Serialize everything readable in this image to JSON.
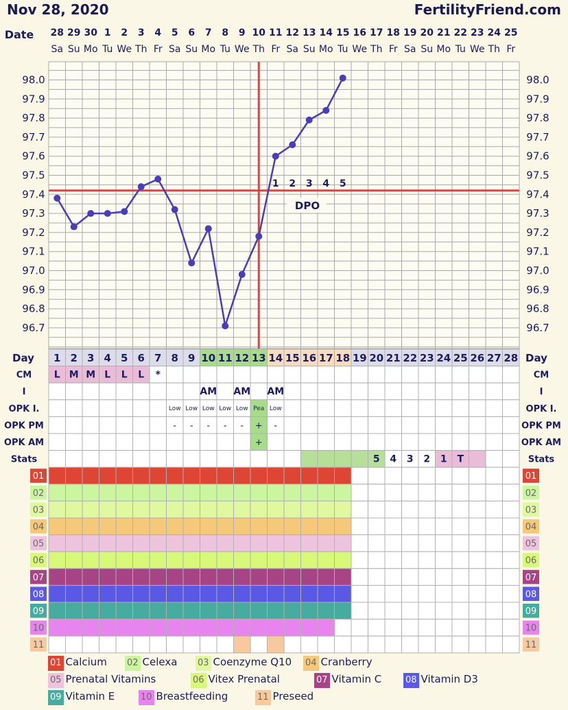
{
  "header": {
    "date": "Nov 28, 2020",
    "site": "FertilityFriend.com"
  },
  "chart_data": {
    "type": "line",
    "xlabel": "Date",
    "dates": [
      "28",
      "29",
      "30",
      "1",
      "2",
      "3",
      "4",
      "5",
      "6",
      "7",
      "8",
      "9",
      "10",
      "11",
      "12",
      "13",
      "14",
      "15",
      "16",
      "17",
      "18",
      "19",
      "20",
      "21",
      "22",
      "23",
      "24",
      "25"
    ],
    "weekdays": [
      "Sa",
      "Su",
      "Mo",
      "Tu",
      "We",
      "Th",
      "Fr",
      "Sa",
      "Su",
      "Mo",
      "Tu",
      "We",
      "Th",
      "Fr",
      "Sa",
      "Su",
      "Mo",
      "Tu",
      "We",
      "Th",
      "Fr",
      "Sa",
      "Su",
      "Mo",
      "Tu",
      "We",
      "Th",
      "Fr"
    ],
    "ylim": [
      96.6,
      98.1
    ],
    "yticks": [
      "98.0",
      "97.9",
      "97.8",
      "97.7",
      "97.6",
      "97.5",
      "97.4",
      "97.3",
      "97.2",
      "97.1",
      "97.0",
      "96.9",
      "96.8",
      "96.7"
    ],
    "temps": [
      97.38,
      97.23,
      97.3,
      97.3,
      97.31,
      97.44,
      97.48,
      97.32,
      97.04,
      97.22,
      96.71,
      96.98,
      97.18,
      97.6,
      97.66,
      97.79,
      97.84,
      98.01
    ],
    "coverline": 97.42,
    "ovulation_day": 13,
    "dpo": {
      "label": "DPO",
      "numbers": [
        "1",
        "2",
        "3",
        "4",
        "5"
      ]
    },
    "day_label": "Day",
    "days": [
      "1",
      "2",
      "3",
      "4",
      "5",
      "6",
      "7",
      "8",
      "9",
      "10",
      "11",
      "12",
      "13",
      "14",
      "15",
      "16",
      "17",
      "18",
      "19",
      "20",
      "21",
      "22",
      "23",
      "24",
      "25",
      "26",
      "27",
      "28"
    ],
    "rows": [
      {
        "label": "CM",
        "cells": [
          "L",
          "M",
          "M",
          "L",
          "L",
          "L",
          "*",
          "",
          "",
          "",
          "",
          "",
          "",
          "",
          "",
          "",
          "",
          "",
          "",
          "",
          "",
          "",
          "",
          "",
          "",
          "",
          "",
          ""
        ]
      },
      {
        "label": "I",
        "cells": [
          "",
          "",
          "",
          "",
          "",
          "",
          "",
          "",
          "",
          "AM",
          "",
          "AM",
          "",
          "AM",
          "",
          "",
          "",
          "",
          "",
          "",
          "",
          "",
          "",
          "",
          "",
          "",
          "",
          ""
        ]
      },
      {
        "label": "OPK I.",
        "cells": [
          "",
          "",
          "",
          "",
          "",
          "",
          "",
          "Low",
          "Low",
          "Low",
          "Low",
          "Low",
          "Pea",
          "Low",
          "",
          "",
          "",
          "",
          "",
          "",
          "",
          "",
          "",
          "",
          "",
          "",
          "",
          ""
        ]
      },
      {
        "label": "OPK PM",
        "cells": [
          "",
          "",
          "",
          "",
          "",
          "",
          "",
          "-",
          "-",
          "-",
          "-",
          "-",
          "+",
          "-",
          "",
          "",
          "",
          "",
          "",
          "",
          "",
          "",
          "",
          "",
          "",
          "",
          "",
          ""
        ]
      },
      {
        "label": "OPK AM",
        "cells": [
          "",
          "",
          "",
          "",
          "",
          "",
          "",
          "",
          "",
          "",
          "",
          "",
          "+",
          "",
          "",
          "",
          "",
          "",
          "",
          "",
          "",
          "",
          "",
          "",
          "",
          "",
          "",
          ""
        ]
      },
      {
        "label": "Stats",
        "cells": [
          "",
          "",
          "",
          "",
          "",
          "",
          "",
          "",
          "",
          "",
          "",
          "",
          "",
          "",
          "",
          "",
          "",
          "",
          "",
          "5",
          "4",
          "3",
          "2",
          "1",
          "T",
          "",
          "",
          ""
        ]
      }
    ],
    "medications": [
      {
        "code": "01",
        "name": "Calcium",
        "color": "#de4535",
        "days": 18
      },
      {
        "code": "02",
        "name": "Celexa",
        "color": "#ccf5a0",
        "days": 18
      },
      {
        "code": "03",
        "name": "Coenzyme Q10",
        "color": "#e0f8a0",
        "days": 18
      },
      {
        "code": "04",
        "name": "Cranberry",
        "color": "#f6c87a",
        "days": 18
      },
      {
        "code": "05",
        "name": "Prenatal Vitamins",
        "color": "#eec3de",
        "days": 18
      },
      {
        "code": "06",
        "name": "Vitex Prenatal",
        "color": "#d8f87a",
        "days": 18
      },
      {
        "code": "07",
        "name": "Vitamin C",
        "color": "#a64486",
        "days": 18
      },
      {
        "code": "08",
        "name": "Vitamin D3",
        "color": "#5a59e6",
        "days": 18
      },
      {
        "code": "09",
        "name": "Vitamin E",
        "color": "#48ab9f",
        "days": 18
      },
      {
        "code": "10",
        "name": "Breastfeeding",
        "color": "#e884ee",
        "days": 17
      },
      {
        "code": "11",
        "name": "Preseed",
        "color": "#f6c99f",
        "on_days": [
          12,
          14
        ]
      }
    ],
    "colors": {
      "line": "#4a3db8",
      "coverline": "#cf4b4b",
      "ovulation": "#c84c4c",
      "grid": "#a8a8a8",
      "fertile": "#a8dc8c",
      "post": "#f8dcc0",
      "cm": "#ebbcd8",
      "pea": "#a8dc8c",
      "stats_green": "#b6e09a",
      "stats_pink": "#ebbcd8"
    }
  }
}
